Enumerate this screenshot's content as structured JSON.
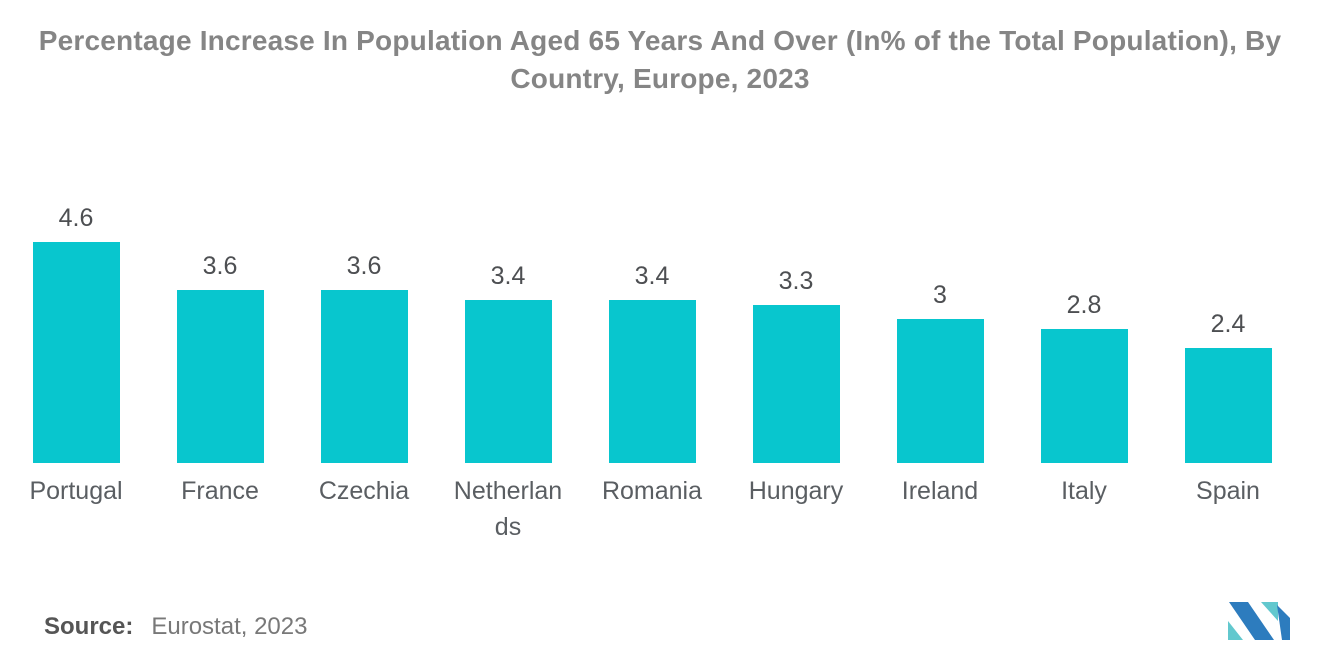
{
  "title": "Percentage Increase In Population Aged 65 Years And Over (In% of the Total Population), By Country, Europe, 2023",
  "source": {
    "label": "Source:",
    "value": "Eurostat, 2023"
  },
  "logo": {
    "name": "mordor-intelligence-logo",
    "blue": "#2D7CBE",
    "teal": "#62C8CE"
  },
  "colors": {
    "bar": "#08C6CE",
    "title_text": "#858585",
    "value_text": "#4d4f52",
    "category_text": "#5a5e62",
    "background": "#ffffff"
  },
  "chart_data": {
    "type": "bar",
    "title": "Percentage Increase In Population Aged 65 Years And Over (In% of the Total Population), By Country, Europe, 2023",
    "categories": [
      "Portugal",
      "France",
      "Czechia",
      "Netherlands",
      "Romania",
      "Hungary",
      "Ireland",
      "Italy",
      "Spain"
    ],
    "values": [
      4.6,
      3.6,
      3.6,
      3.4,
      3.4,
      3.3,
      3,
      2.8,
      2.4
    ],
    "value_labels": [
      "4.6",
      "3.6",
      "3.6",
      "3.4",
      "3.4",
      "3.3",
      "3",
      "2.8",
      "2.4"
    ],
    "xlabel": "",
    "ylabel": "",
    "ylim": [
      0,
      5
    ],
    "grid": false,
    "legend": false,
    "axes_visible": false,
    "bar_color": "#08C6CE",
    "pixels_per_unit": 48
  }
}
